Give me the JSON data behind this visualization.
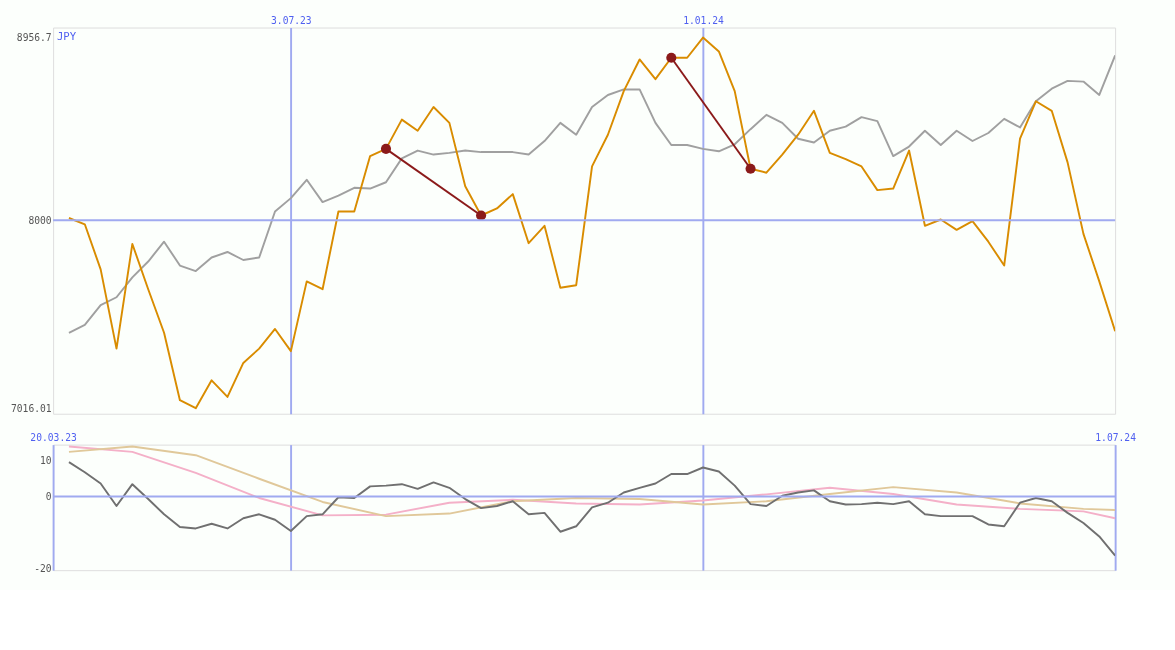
{
  "chart_data": [
    {
      "type": "line",
      "ylabel": "JPY",
      "x": [
        "2023-03-27",
        "2023-04-03",
        "2023-04-10",
        "2023-04-17",
        "2023-04-24",
        "2023-05-01",
        "2023-05-08",
        "2023-05-15",
        "2023-05-22",
        "2023-05-29",
        "2023-06-05",
        "2023-06-12",
        "2023-06-19",
        "2023-06-26",
        "2023-07-03",
        "2023-07-10",
        "2023-07-17",
        "2023-07-24",
        "2023-07-31",
        "2023-08-07",
        "2023-08-14",
        "2023-08-21",
        "2023-08-28",
        "2023-09-04",
        "2023-09-11",
        "2023-09-18",
        "2023-09-25",
        "2023-10-02",
        "2023-10-09",
        "2023-10-16",
        "2023-10-23",
        "2023-10-30",
        "2023-11-06",
        "2023-11-13",
        "2023-11-20",
        "2023-11-27",
        "2023-12-04",
        "2023-12-11",
        "2023-12-18",
        "2023-12-25",
        "2024-01-01",
        "2024-01-08",
        "2024-01-15",
        "2024-01-22",
        "2024-01-29",
        "2024-02-05",
        "2024-02-12",
        "2024-02-19",
        "2024-02-26",
        "2024-03-04",
        "2024-03-11",
        "2024-03-18",
        "2024-03-25",
        "2024-04-01",
        "2024-04-08",
        "2024-04-15",
        "2024-04-22",
        "2024-04-29",
        "2024-05-06",
        "2024-05-13",
        "2024-05-20",
        "2024-05-27",
        "2024-06-03",
        "2024-06-10",
        "2024-06-17",
        "2024-06-24",
        "2024-07-01"
      ],
      "series": [
        {
          "color": "#a0a0a0",
          "values": [
            7411,
            7452,
            7556,
            7597,
            7701,
            7784,
            7888,
            7763,
            7734,
            7805,
            7834,
            7792,
            7805,
            8046,
            8116,
            8212,
            8095,
            8129,
            8170,
            8166,
            8199,
            8324,
            8365,
            8344,
            8353,
            8365,
            8357,
            8357,
            8357,
            8344,
            8415,
            8510,
            8448,
            8593,
            8656,
            8685,
            8685,
            8510,
            8394,
            8394,
            8374,
            8361,
            8398,
            8477,
            8552,
            8510,
            8427,
            8407,
            8469,
            8490,
            8540,
            8519,
            8336,
            8386,
            8469,
            8394,
            8469,
            8415,
            8457,
            8531,
            8486,
            8623,
            8689,
            8730,
            8726,
            8656,
            8863
          ]
        },
        {
          "color": "#d98c00",
          "values": [
            8012,
            7979,
            7743,
            7328,
            7876,
            7639,
            7411,
            7058,
            7016.01,
            7162,
            7075,
            7253,
            7328,
            7431,
            7315,
            7680,
            7639,
            8046,
            8046,
            8336,
            8374,
            8527,
            8469,
            8593,
            8510,
            8178,
            8025,
            8062,
            8137,
            7880,
            7971,
            7647,
            7660,
            8282,
            8448,
            8676,
            8842,
            8739,
            8851,
            8851,
            8956.7,
            8884,
            8676,
            8270,
            8249,
            8344,
            8448,
            8573,
            8353,
            8320,
            8282,
            8158,
            8166,
            8365,
            7971,
            8004,
            7950,
            7996,
            7888,
            7763,
            8427,
            8623,
            8573,
            8303,
            7929,
            7680,
            7419
          ]
        },
        {
          "type": "line",
          "color": "#8b1a1a",
          "marker": "circle",
          "x": [
            "2023-08-14",
            "2023-09-25"
          ],
          "values": [
            8374,
            8025
          ]
        },
        {
          "type": "line",
          "color": "#8b1a1a",
          "marker": "circle",
          "x": [
            "2023-12-18",
            "2024-01-22"
          ],
          "values": [
            8851,
            8270
          ]
        }
      ],
      "xlim": [
        "2023-03-20",
        "2024-07-01"
      ],
      "xticks": [
        {
          "value": "2023-07-03",
          "label": "3.07.23"
        },
        {
          "value": "2024-01-01",
          "label": "1.01.24"
        }
      ],
      "ylim": [
        6987,
        9009
      ],
      "yticks": [
        {
          "value": 7016.01,
          "label": "7016.01"
        },
        8000,
        {
          "value": 8956.7,
          "label": "8956.7"
        }
      ],
      "grid": "x",
      "ref_lines": [
        {
          "axis": "y",
          "value": 8000,
          "color": "#a0aaf0"
        }
      ]
    },
    {
      "type": "line",
      "x": [
        "2023-03-27",
        "2023-04-03",
        "2023-04-10",
        "2023-04-17",
        "2023-04-24",
        "2023-05-01",
        "2023-05-08",
        "2023-05-15",
        "2023-05-22",
        "2023-05-29",
        "2023-06-05",
        "2023-06-12",
        "2023-06-19",
        "2023-06-26",
        "2023-07-03",
        "2023-07-10",
        "2023-07-17",
        "2023-07-24",
        "2023-07-31",
        "2023-08-07",
        "2023-08-14",
        "2023-08-21",
        "2023-08-28",
        "2023-09-04",
        "2023-09-11",
        "2023-09-18",
        "2023-09-25",
        "2023-10-02",
        "2023-10-09",
        "2023-10-16",
        "2023-10-23",
        "2023-10-30",
        "2023-11-06",
        "2023-11-13",
        "2023-11-20",
        "2023-11-27",
        "2023-12-04",
        "2023-12-11",
        "2023-12-18",
        "2023-12-25",
        "2024-01-01",
        "2024-01-08",
        "2024-01-15",
        "2024-01-22",
        "2024-01-29",
        "2024-02-05",
        "2024-02-12",
        "2024-02-19",
        "2024-02-26",
        "2024-03-04",
        "2024-03-11",
        "2024-03-18",
        "2024-03-25",
        "2024-04-01",
        "2024-04-08",
        "2024-04-15",
        "2024-04-22",
        "2024-04-29",
        "2024-05-06",
        "2024-05-13",
        "2024-05-20",
        "2024-05-27",
        "2024-06-03",
        "2024-06-10",
        "2024-06-17",
        "2024-06-24",
        "2024-07-01"
      ],
      "series": [
        {
          "color": "#f4b0c8",
          "x": [
            "2023-03-27",
            "2023-04-24",
            "2023-05-22",
            "2023-06-19",
            "2023-07-17",
            "2023-08-14",
            "2023-09-11",
            "2023-10-09",
            "2023-11-06",
            "2023-12-04",
            "2024-01-01",
            "2024-01-29",
            "2024-02-26",
            "2024-03-25",
            "2024-04-22",
            "2024-05-20",
            "2024-06-17",
            "2024-07-01"
          ],
          "values": [
            13.8,
            12.3,
            6.5,
            -0.4,
            -5.2,
            -5.0,
            -1.7,
            -0.9,
            -1.9,
            -2.2,
            -1.1,
            0.6,
            2.4,
            0.7,
            -2.2,
            -3.4,
            -4.1,
            -6.0
          ]
        },
        {
          "color": "#e0c89a",
          "x": [
            "2023-03-27",
            "2023-04-24",
            "2023-05-22",
            "2023-06-19",
            "2023-07-17",
            "2023-08-14",
            "2023-09-11",
            "2023-10-09",
            "2023-11-06",
            "2023-12-04",
            "2024-01-01",
            "2024-01-29",
            "2024-02-26",
            "2024-03-25",
            "2024-04-22",
            "2024-05-20",
            "2024-06-17",
            "2024-07-01"
          ],
          "values": [
            12.3,
            13.8,
            11.4,
            4.9,
            -1.5,
            -5.4,
            -4.7,
            -1.3,
            -0.4,
            -0.7,
            -2.2,
            -1.3,
            0.7,
            2.6,
            1.1,
            -1.9,
            -3.4,
            -3.7
          ]
        },
        {
          "color": "#707070",
          "values": [
            9.5,
            6.7,
            3.6,
            -2.6,
            3.4,
            -0.7,
            -4.9,
            -8.4,
            -8.8,
            -7.5,
            -8.8,
            -6.0,
            -4.9,
            -6.4,
            -9.5,
            -5.4,
            -4.9,
            -0.2,
            -0.4,
            2.8,
            3.0,
            3.4,
            2.1,
            3.9,
            2.4,
            -0.7,
            -3.2,
            -2.6,
            -1.3,
            -4.9,
            -4.5,
            -9.7,
            -8.2,
            -3.0,
            -1.7,
            1.1,
            2.4,
            3.6,
            6.2,
            6.2,
            8.0,
            6.9,
            3.0,
            -2.1,
            -2.6,
            0.2,
            1.1,
            1.7,
            -1.3,
            -2.2,
            -2.1,
            -1.7,
            -2.1,
            -1.3,
            -4.9,
            -5.4,
            -5.4,
            -5.4,
            -7.7,
            -8.2,
            -1.7,
            -0.4,
            -1.3,
            -4.5,
            -7.3,
            -11.0,
            -16.3
          ]
        }
      ],
      "xlim": [
        "2023-03-20",
        "2024-07-01"
      ],
      "xticks": [
        {
          "value": "2023-03-20",
          "label": "20.03.23"
        },
        {
          "value": "2023-07-03",
          "label": null
        },
        {
          "value": "2024-01-01",
          "label": null
        },
        {
          "value": "2024-07-01",
          "label": "1.07.24"
        }
      ],
      "ylim": [
        -20.3,
        14.3
      ],
      "yticks": [
        10,
        0,
        -20
      ],
      "grid": "x",
      "ref_lines": [
        {
          "axis": "y",
          "value": 0,
          "color": "#a0aaf0"
        }
      ]
    }
  ]
}
